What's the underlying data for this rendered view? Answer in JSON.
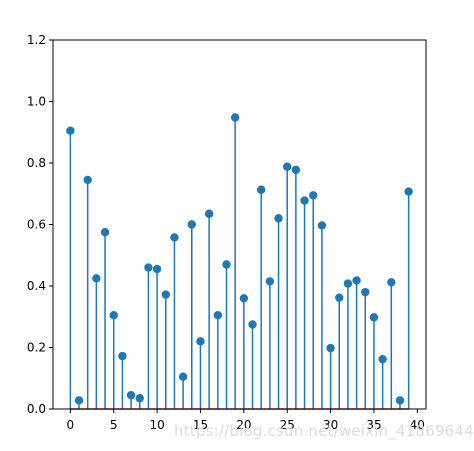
{
  "chart_data": {
    "type": "stem",
    "x": [
      0,
      1,
      2,
      3,
      4,
      5,
      6,
      7,
      8,
      9,
      10,
      11,
      12,
      13,
      14,
      15,
      16,
      17,
      18,
      19,
      20,
      21,
      22,
      23,
      24,
      25,
      26,
      27,
      28,
      29,
      30,
      31,
      32,
      33,
      34,
      35,
      36,
      37,
      38,
      39
    ],
    "values": [
      0.905,
      0.028,
      0.745,
      0.425,
      0.575,
      0.305,
      0.172,
      0.045,
      0.035,
      0.46,
      0.455,
      0.372,
      0.558,
      0.105,
      0.6,
      0.22,
      0.635,
      0.305,
      0.47,
      0.948,
      0.36,
      0.275,
      0.713,
      0.415,
      0.62,
      0.788,
      0.778,
      0.678,
      0.695,
      0.597,
      0.198,
      0.362,
      0.408,
      0.418,
      0.38,
      0.298,
      0.162,
      0.412,
      0.028,
      0.707
    ],
    "xlim": [
      -2,
      41
    ],
    "ylim": [
      0,
      1.2
    ],
    "x_ticks": [
      0,
      5,
      10,
      15,
      20,
      25,
      30,
      35,
      40
    ],
    "x_tick_labels": [
      "0",
      "5",
      "10",
      "15",
      "20",
      "25",
      "30",
      "35",
      "40"
    ],
    "y_ticks": [
      0.0,
      0.2,
      0.4,
      0.6,
      0.8,
      1.0,
      1.2
    ],
    "y_tick_labels": [
      "0.0",
      "0.2",
      "0.4",
      "0.6",
      "0.8",
      "1.0",
      "1.2"
    ],
    "title": "",
    "xlabel": "",
    "ylabel": "",
    "grid": false,
    "colors": {
      "stem": "#1f77b4",
      "marker": "#1f77b4",
      "baseline": "#d62728",
      "axis": "#000000"
    }
  },
  "watermark": "https://blog.csdn.net/weixin_41869644"
}
